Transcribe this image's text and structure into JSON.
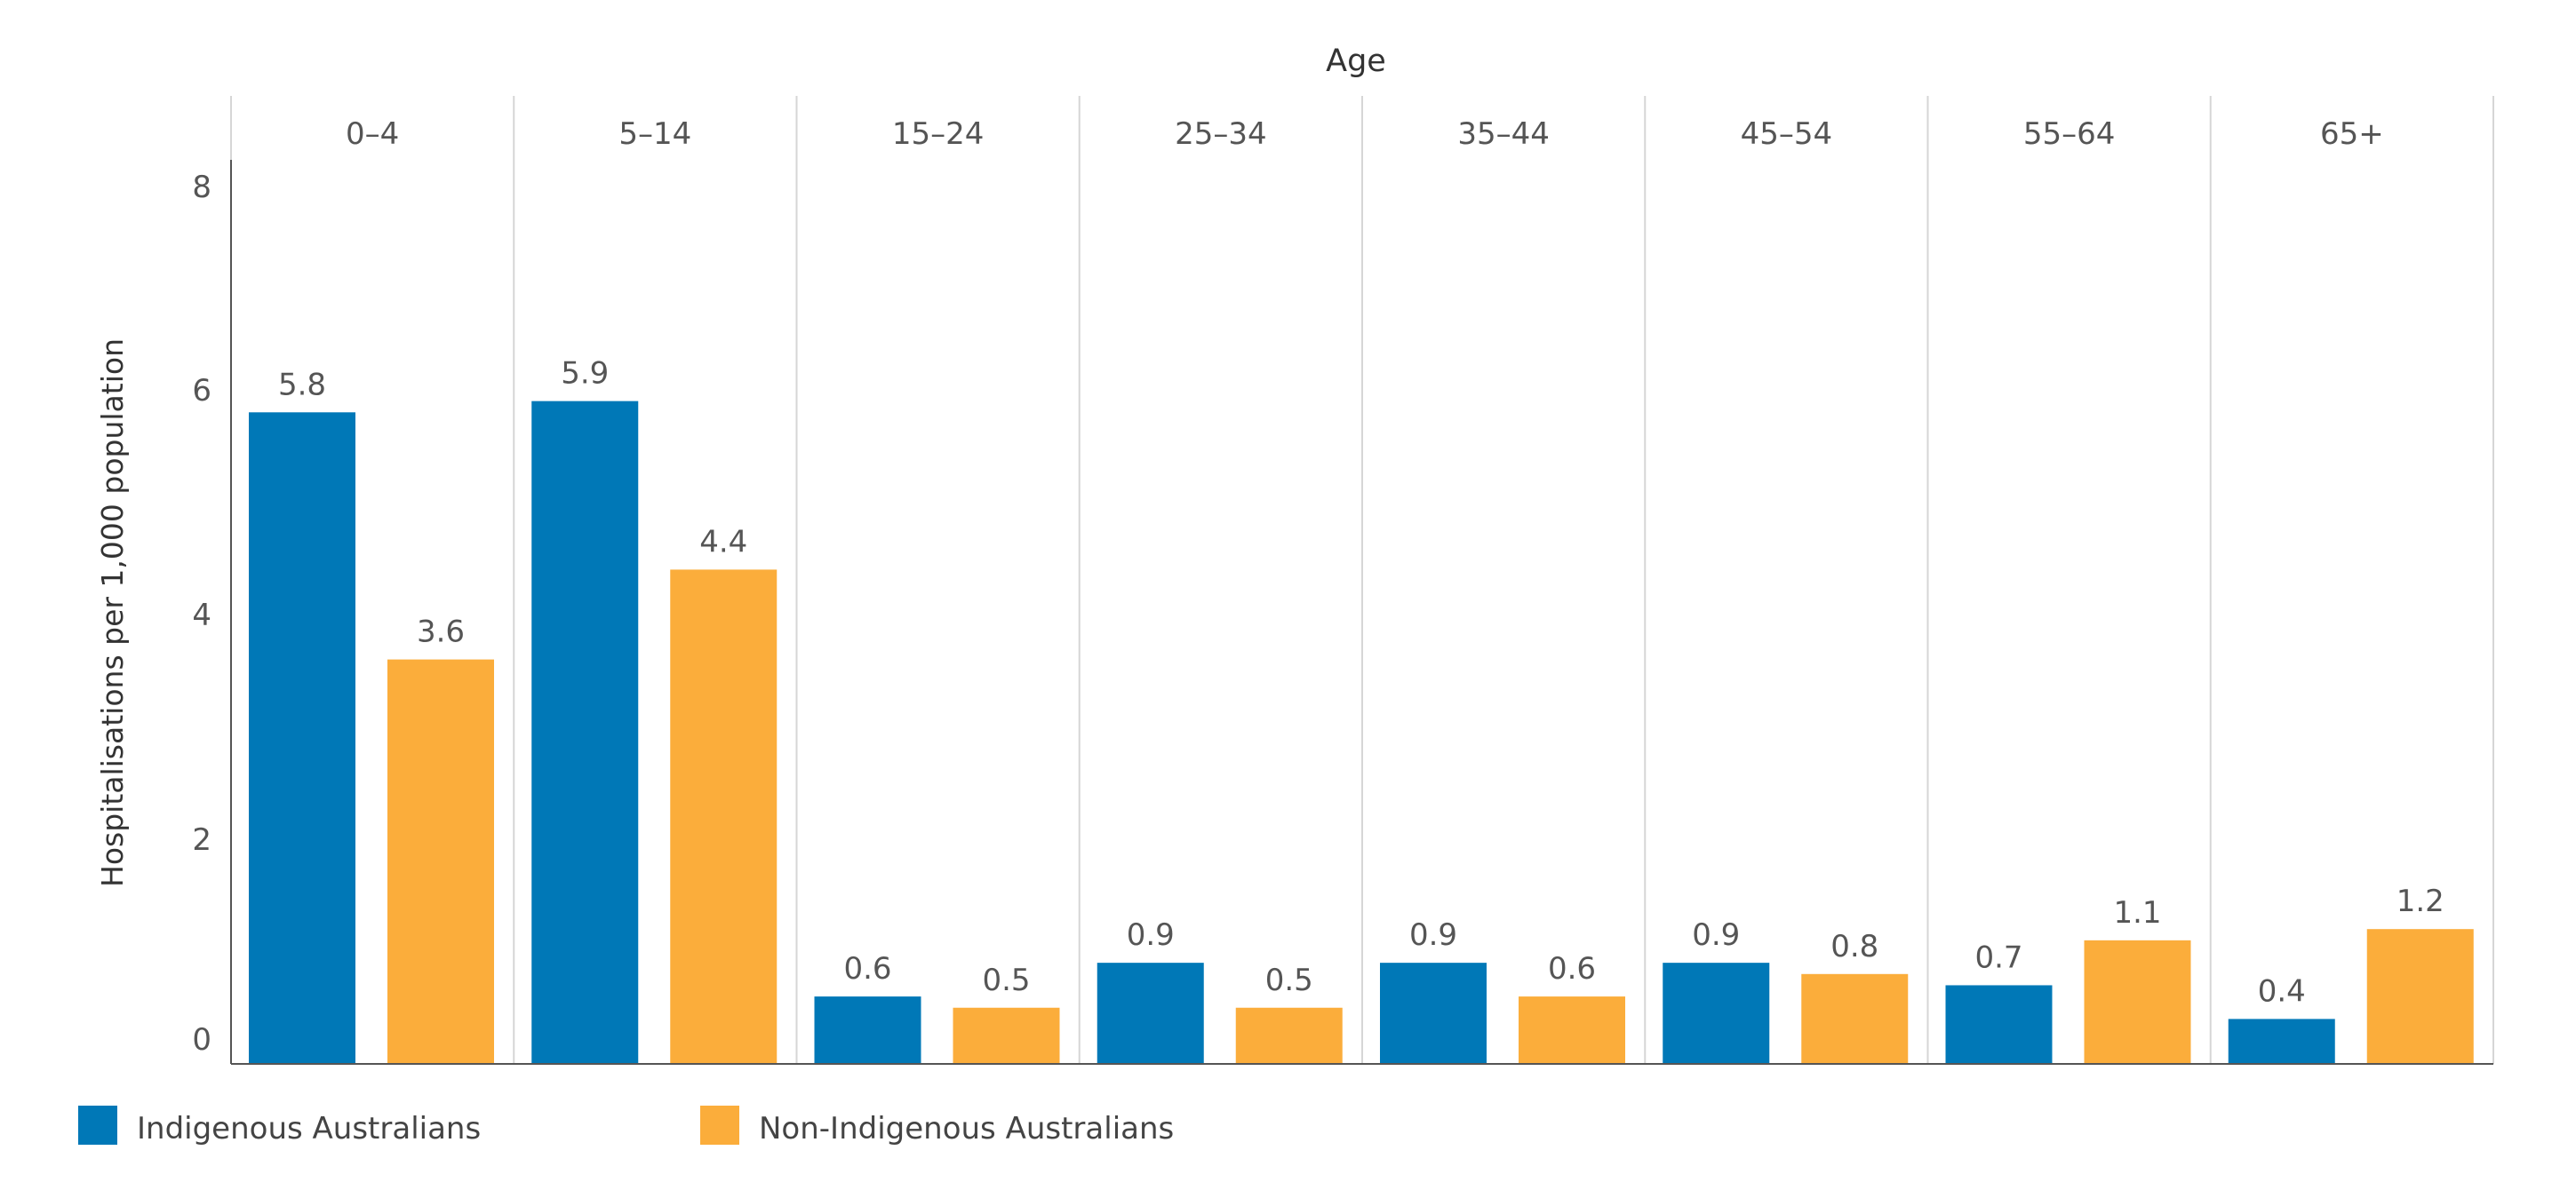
{
  "chart_data": {
    "type": "bar",
    "column_header": "Age",
    "categories": [
      "0–4",
      "5–14",
      "15–24",
      "25–34",
      "35–44",
      "45–54",
      "55–64",
      "65+"
    ],
    "ylabel": "Hospitalisations per 1,000 population",
    "ylim": [
      0,
      8
    ],
    "yticks": [
      "0",
      "2",
      "4",
      "6",
      "8"
    ],
    "series": [
      {
        "name": "Indigenous Australians",
        "color": "#0078B7",
        "values": [
          5.8,
          5.9,
          0.6,
          0.9,
          0.9,
          0.9,
          0.7,
          0.4
        ]
      },
      {
        "name": "Non-Indigenous Australians",
        "color": "#FBAD3B",
        "values": [
          3.6,
          4.4,
          0.5,
          0.5,
          0.6,
          0.8,
          1.1,
          1.2
        ]
      }
    ],
    "grid": "vertical separators between age groups",
    "legend_position": "bottom-left"
  }
}
